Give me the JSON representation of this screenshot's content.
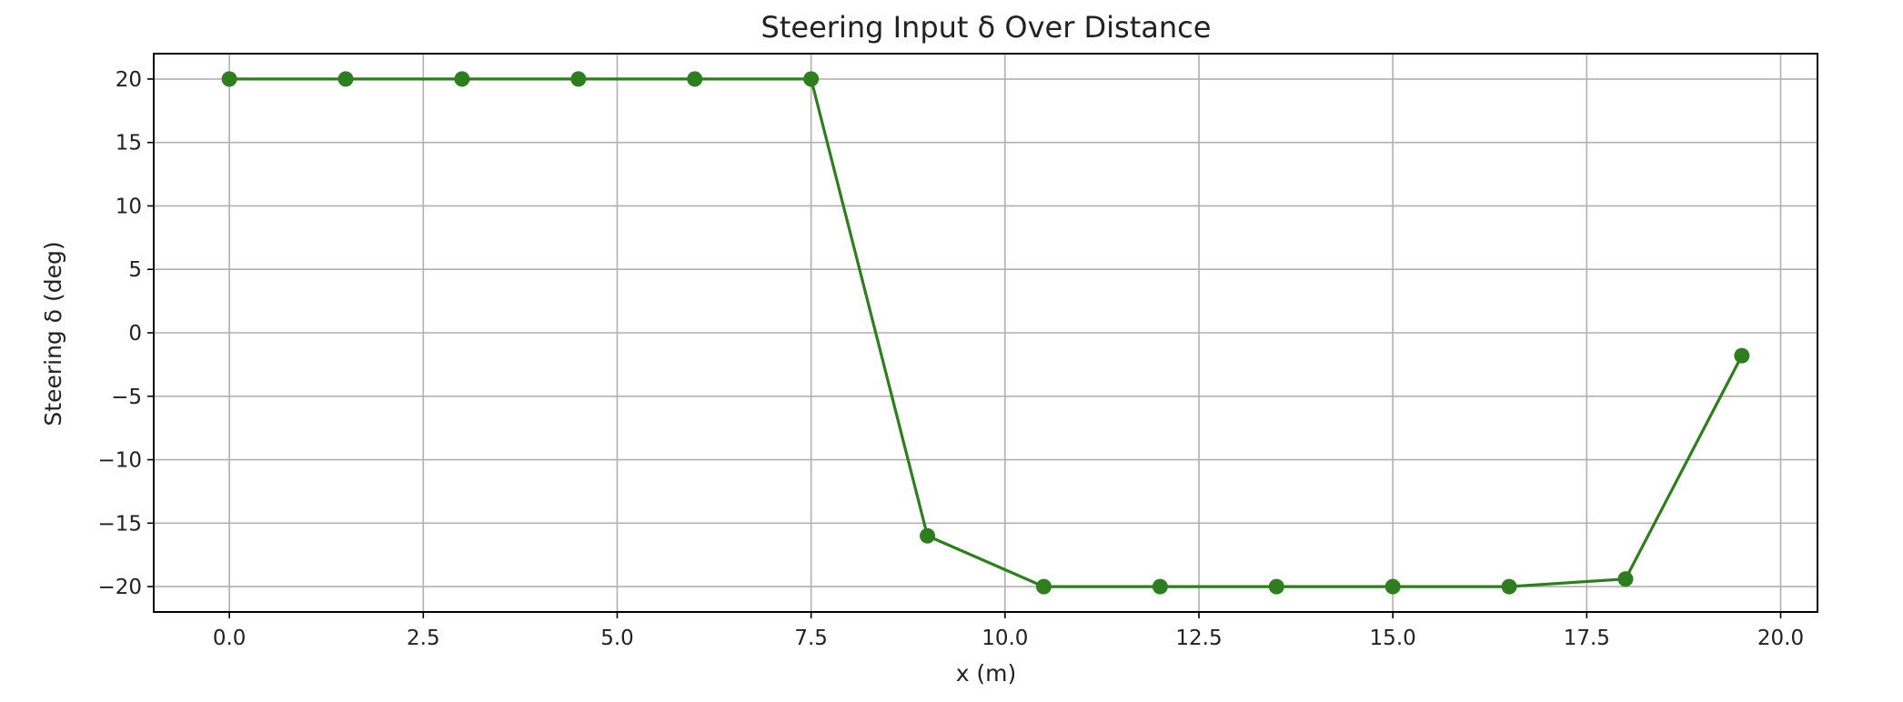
{
  "chart_data": {
    "type": "line",
    "title": "Steering Input δ Over Distance",
    "xlabel": "x (m)",
    "ylabel": "Steering δ (deg)",
    "xlim": [
      -0.975,
      20.475
    ],
    "ylim": [
      -22.0,
      22.0
    ],
    "x_ticks": [
      0.0,
      2.5,
      5.0,
      7.5,
      10.0,
      12.5,
      15.0,
      17.5,
      20.0
    ],
    "x_tick_labels": [
      "0.0",
      "2.5",
      "5.0",
      "7.5",
      "10.0",
      "12.5",
      "15.0",
      "17.5",
      "20.0"
    ],
    "y_ticks": [
      20,
      15,
      10,
      5,
      0,
      -5,
      -10,
      -15,
      -20
    ],
    "y_tick_labels": [
      "20",
      "15",
      "10",
      "5",
      "0",
      "−5",
      "−10",
      "−15",
      "−20"
    ],
    "grid": true,
    "series": [
      {
        "color": "#2e7d1f",
        "marker": "circle",
        "x": [
          0.0,
          1.5,
          3.0,
          4.5,
          6.0,
          7.5,
          9.0,
          10.5,
          12.0,
          13.5,
          15.0,
          16.5,
          18.0,
          19.5
        ],
        "y": [
          20,
          20,
          20,
          20,
          20,
          20,
          -16,
          -20,
          -20,
          -20,
          -20,
          -20,
          -19.4,
          -1.8
        ]
      }
    ]
  }
}
